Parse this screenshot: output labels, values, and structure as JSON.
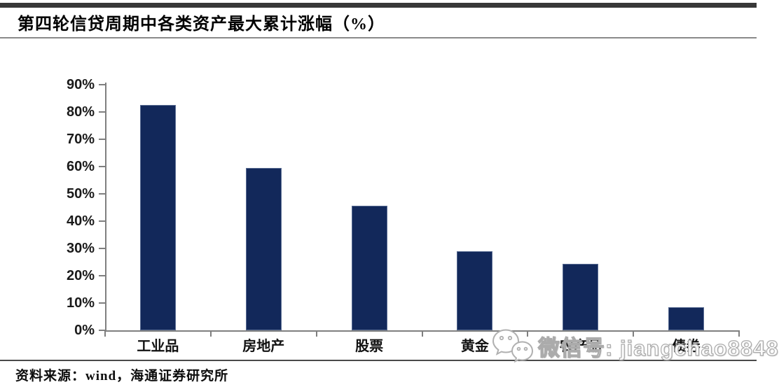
{
  "header": {
    "title": "第四轮信贷周期中各类资产最大累计涨幅（%）"
  },
  "chart_data": {
    "type": "bar",
    "title": "第四轮信贷周期中各类资产最大累计涨幅（%）",
    "categories": [
      "工业品",
      "房地产",
      "股票",
      "黄金",
      "农产品",
      "债券"
    ],
    "values": [
      82.5,
      59.6,
      45.6,
      28.9,
      24.4,
      8.4
    ],
    "xlabel": "",
    "ylabel": "",
    "ylim": [
      0,
      90
    ],
    "y_tick_step": 10,
    "y_tick_labels": [
      "0%",
      "10%",
      "20%",
      "30%",
      "40%",
      "50%",
      "60%",
      "70%",
      "80%",
      "90%"
    ],
    "grid": false,
    "legend": false,
    "bar_color": "#12285a",
    "axis_color": "#7f7f7f",
    "tick_label_color": "#1a1a1a"
  },
  "watermark": {
    "icon": "wechat-icon",
    "label": "微信号: jiangchao8848"
  },
  "footer": {
    "source": "资料来源：wind，海通证券研究所"
  }
}
